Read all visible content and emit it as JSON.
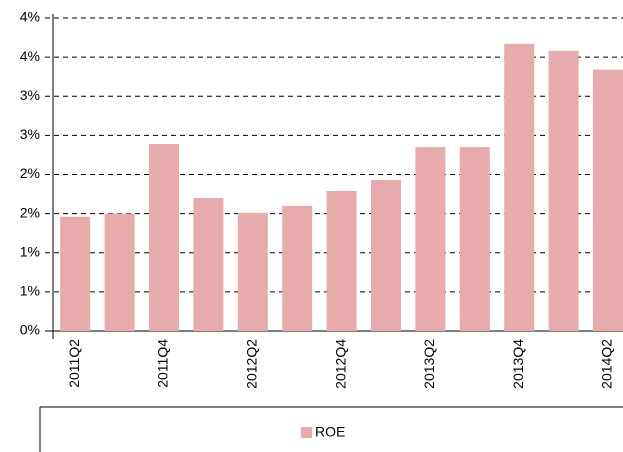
{
  "chart_data": {
    "type": "bar",
    "categories": [
      "2011Q2",
      null,
      "2011Q4",
      null,
      "2012Q2",
      null,
      "2012Q4",
      null,
      "2013Q2",
      null,
      "2013Q4",
      null,
      "2014Q2"
    ],
    "series": [
      {
        "name": "ROE",
        "color": "#e8abab",
        "values": [
          1.46,
          1.5,
          2.39,
          1.7,
          1.51,
          1.6,
          1.79,
          1.93,
          2.35,
          2.35,
          3.67,
          3.58,
          3.34
        ]
      }
    ],
    "ylim": [
      0,
      4
    ],
    "yticks": [
      {
        "value": 0,
        "label": "0%"
      },
      {
        "value": 0.5,
        "label": "1%"
      },
      {
        "value": 1,
        "label": "1%"
      },
      {
        "value": 1.5,
        "label": "2%"
      },
      {
        "value": 2,
        "label": "2%"
      },
      {
        "value": 2.5,
        "label": "3%"
      },
      {
        "value": 3,
        "label": "3%"
      },
      {
        "value": 3.5,
        "label": "4%"
      },
      {
        "value": 4,
        "label": "4%"
      }
    ],
    "grid": true,
    "legend": "bottom"
  }
}
